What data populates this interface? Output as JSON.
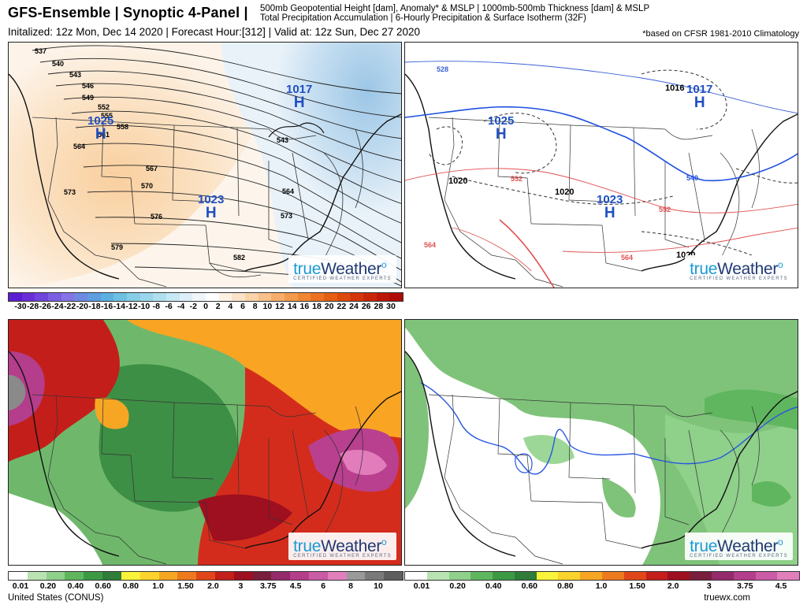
{
  "header": {
    "title": "GFS-Ensemble | Synoptic 4-Panel |",
    "description_line1": "500mb Geopotential Height [dam], Anomaly* & MSLP | 1000mb-500mb Thickness [dam] & MSLP",
    "description_line2": "Total Precipitation Accumulation | 6-Hourly Precipitation & Surface Isotherm (32F)",
    "subtitle": "Initalized: 12z Mon, Dec 14 2020 | Forecast Hour:[312] | Valid at: 12z Sun, Dec 27 2020",
    "note": "*based on CFSR 1981-2010 Climatology"
  },
  "brand": {
    "name_part1": "true",
    "name_part2": "Weather",
    "tagline": "CERTIFIED WEATHER EXPERTS"
  },
  "panel_tl": {
    "height_labels": [
      "537",
      "540",
      "543",
      "546",
      "549",
      "552",
      "555",
      "558",
      "561",
      "564",
      "567",
      "570",
      "573",
      "576",
      "579",
      "582",
      "573",
      "564",
      "543"
    ],
    "pressure_centers": [
      {
        "type": "H",
        "value": "1017"
      },
      {
        "type": "H",
        "value": "1025"
      },
      {
        "type": "H",
        "value": "1023"
      }
    ]
  },
  "panel_tr": {
    "thickness_labels": [
      "528",
      "540",
      "552",
      "552",
      "564",
      "564"
    ],
    "pressure_labels": [
      "1016",
      "1020",
      "1020",
      "1020"
    ],
    "pressure_centers": [
      {
        "type": "H",
        "value": "1017"
      },
      {
        "type": "H",
        "value": "1025"
      },
      {
        "type": "H",
        "value": "1023"
      }
    ]
  },
  "colorbar_anomaly": {
    "labels": [
      "-30",
      "-28",
      "-26",
      "-24",
      "-22",
      "-20",
      "-18",
      "-16",
      "-14",
      "-12",
      "-10",
      "-8",
      "-6",
      "-4",
      "-2",
      "0",
      "2",
      "4",
      "6",
      "8",
      "10",
      "12",
      "14",
      "16",
      "18",
      "20",
      "22",
      "24",
      "26",
      "28",
      "30"
    ],
    "colors": [
      "#5b1fd1",
      "#6a2ed8",
      "#6f45dc",
      "#7c5ee2",
      "#8574e6",
      "#6f89e3",
      "#5f9ee0",
      "#5ab1e0",
      "#6cc0e2",
      "#86cde6",
      "#9bd6ea",
      "#b0dff0",
      "#c7e8f5",
      "#dceff8",
      "#eef6fb",
      "#ffffff",
      "#fdf1e4",
      "#fbe3c8",
      "#fad3a8",
      "#f8c189",
      "#f6ae6a",
      "#f39b4d",
      "#f08734",
      "#ec7222",
      "#e55e15",
      "#dd4a0d",
      "#d4370a",
      "#c92608",
      "#bd1608",
      "#b00a08"
    ]
  },
  "colorbar_total": {
    "labels": [
      "0.01",
      "0.20",
      "0.40",
      "0.60",
      "0.80",
      "1.0",
      "1.50",
      "2.0",
      "3",
      "3.75",
      "4.5",
      "6",
      "8",
      "10"
    ],
    "colors": [
      "#ffffff",
      "#b9e3b2",
      "#8fd08a",
      "#5fb65e",
      "#3c9a45",
      "#2f7d38",
      "#f9f339",
      "#fbd32d",
      "#f6a623",
      "#ee7a1e",
      "#e0461a",
      "#c41e1a",
      "#9e0f1f",
      "#7a1e3d",
      "#932a6a",
      "#b43d8c",
      "#c95ca5",
      "#e17fbd",
      "#9a9a9a",
      "#7a7a7a",
      "#5e5e5e"
    ]
  },
  "colorbar_6hr": {
    "labels": [
      "0.01",
      "0.20",
      "0.40",
      "0.60",
      "0.80",
      "1.0",
      "1.50",
      "2.0",
      "3",
      "3.75",
      "4.5"
    ],
    "colors": [
      "#ffffff",
      "#b9e3b2",
      "#8fd08a",
      "#5fb65e",
      "#3c9a45",
      "#2f7d38",
      "#f9f339",
      "#fbd32d",
      "#f6a623",
      "#ee7a1e",
      "#e0461a",
      "#c41e1a",
      "#9e0f1f",
      "#7a1e3d",
      "#932a6a",
      "#b43d8c",
      "#c95ca5",
      "#e17fbd"
    ]
  },
  "footer": {
    "region": "United States (CONUS)",
    "site": "truewx.com"
  }
}
